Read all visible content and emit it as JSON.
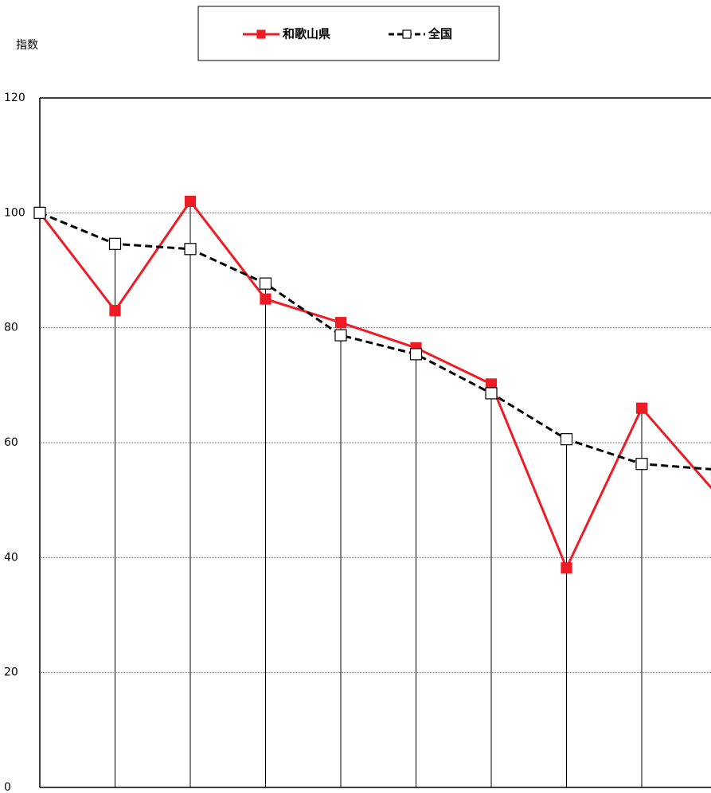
{
  "chart_data": {
    "type": "line",
    "y_label": "指数",
    "categories": [
      null,
      null,
      null,
      null,
      null,
      null,
      null,
      null,
      null,
      null
    ],
    "series": [
      {
        "name": "和歌山県",
        "color": "#ee1c25",
        "values": [
          100,
          83,
          102,
          85,
          80.9,
          76.5,
          70.2,
          38.2,
          66,
          51
        ]
      },
      {
        "name": "全国",
        "color": "#000000",
        "values": [
          100,
          94.6,
          93.7,
          87.7,
          78.7,
          75.4,
          68.6,
          60.6,
          56.3,
          55.3
        ]
      }
    ],
    "ylim": [
      0,
      120
    ],
    "yticks": [
      0,
      20,
      40,
      60,
      80,
      100,
      120
    ],
    "grid": true
  }
}
